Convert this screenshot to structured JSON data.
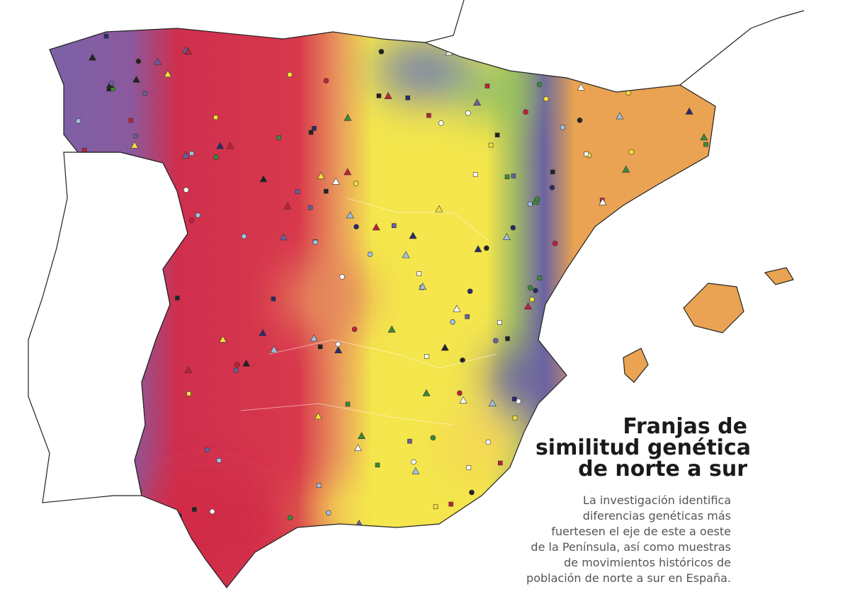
{
  "title": {
    "lines": [
      "Franjas de",
      "similitud genética",
      "de norte a sur"
    ]
  },
  "description": {
    "lines": [
      "La investigación identifica",
      "diferencias genéticas más",
      "fuertesen el eje de este a oeste",
      "de la Península, así como muestras",
      "de movimientos históricos de",
      "población de norte a sur en España."
    ]
  }
}
